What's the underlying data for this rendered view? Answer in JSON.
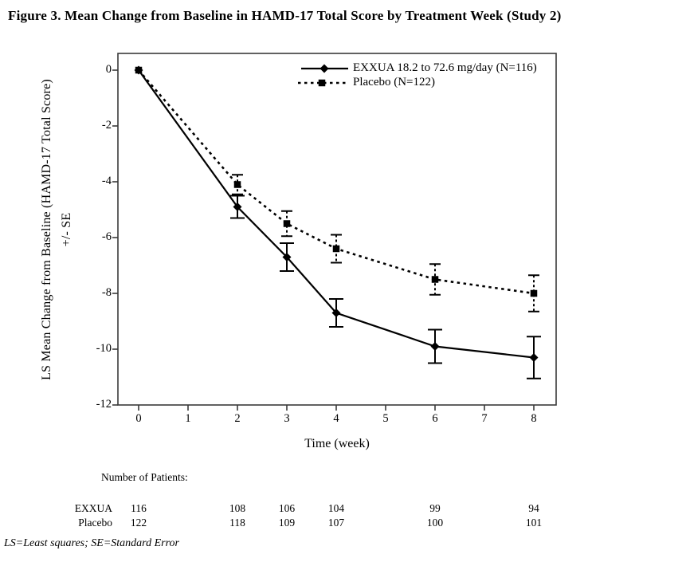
{
  "colors": {
    "background": "#ffffff",
    "ink": "#000000",
    "frame": "#3a3a3a"
  },
  "chart_data": {
    "type": "line",
    "title": "Figure 3. Mean Change from Baseline in HAMD-17 Total Score by Treatment Week (Study 2)",
    "xlabel": "Time (week)",
    "ylabel_line1": "LS Mean Change from Baseline (HAMD-17 Total Score)",
    "ylabel_line2": "+/- SE",
    "x_ticks": [
      0,
      1,
      2,
      3,
      4,
      5,
      6,
      7,
      8
    ],
    "y_ticks": [
      0,
      -2,
      -4,
      -6,
      -8,
      -10,
      -12
    ],
    "xlim": [
      -0.42,
      8.45
    ],
    "ylim": [
      -12,
      0.6
    ],
    "grid": false,
    "legend_position": "top-right-inside",
    "error_bars": "standard error",
    "series": [
      {
        "name": "EXXUA 18.2 to 72.6 mg/day (N=116)",
        "marker": "diamond",
        "line": "solid",
        "points": [
          {
            "week": 0,
            "value": 0,
            "se": 0
          },
          {
            "week": 2,
            "value": -4.9,
            "se": 0.4
          },
          {
            "week": 3,
            "value": -6.7,
            "se": 0.5
          },
          {
            "week": 4,
            "value": -8.7,
            "se": 0.5
          },
          {
            "week": 6,
            "value": -9.9,
            "se": 0.6
          },
          {
            "week": 8,
            "value": -10.3,
            "se": 0.75
          }
        ]
      },
      {
        "name": "Placebo (N=122)",
        "marker": "square",
        "line": "dashed",
        "points": [
          {
            "week": 0,
            "value": 0,
            "se": 0
          },
          {
            "week": 2,
            "value": -4.1,
            "se": 0.35
          },
          {
            "week": 3,
            "value": -5.5,
            "se": 0.45
          },
          {
            "week": 4,
            "value": -6.4,
            "se": 0.5
          },
          {
            "week": 6,
            "value": -7.5,
            "se": 0.55
          },
          {
            "week": 8,
            "value": -8.0,
            "se": 0.65
          }
        ]
      }
    ],
    "patients_table": {
      "header": "Number of Patients:",
      "weeks": [
        0,
        2,
        3,
        4,
        6,
        8
      ],
      "rows": [
        {
          "label": "EXXUA",
          "counts": [
            116,
            108,
            106,
            104,
            99,
            94
          ]
        },
        {
          "label": "Placebo",
          "counts": [
            122,
            118,
            109,
            107,
            100,
            101
          ]
        }
      ]
    },
    "footnote": "LS=Least squares; SE=Standard Error"
  }
}
